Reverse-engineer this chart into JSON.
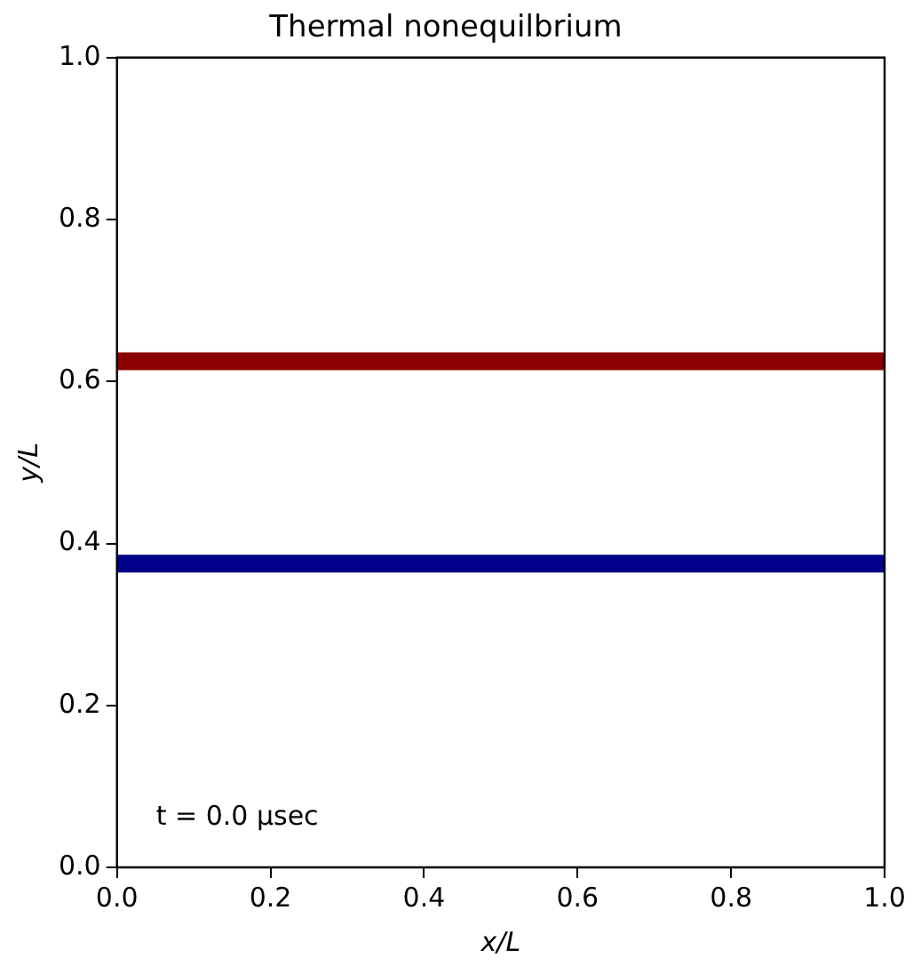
{
  "chart_data": {
    "type": "line",
    "title": "Thermal nonequilbrium",
    "xlabel": "x/L",
    "ylabel": "y/L",
    "annotations": [
      "t = 0.0 μsec"
    ],
    "ref_lines": [
      {
        "axis": "y",
        "value": 0.625,
        "color": "#8b0000",
        "line_style": "solid"
      },
      {
        "axis": "y",
        "value": 0.375,
        "color": "#00008b",
        "line_style": "solid"
      }
    ],
    "xlim": [
      0,
      1
    ],
    "ylim": [
      0,
      1
    ],
    "xticks": [
      {
        "value": 0,
        "label": "0.0"
      },
      {
        "value": 0.2,
        "label": "0.2"
      },
      {
        "value": 0.4,
        "label": "0.4"
      },
      {
        "value": 0.6,
        "label": "0.6"
      },
      {
        "value": 0.8,
        "label": "0.8"
      },
      {
        "value": 1,
        "label": "1.0"
      }
    ],
    "yticks": [
      {
        "value": 0,
        "label": "0.0"
      },
      {
        "value": 0.2,
        "label": "0.2"
      },
      {
        "value": 0.4,
        "label": "0.4"
      },
      {
        "value": 0.6,
        "label": "0.6"
      },
      {
        "value": 0.8,
        "label": "0.8"
      },
      {
        "value": 1,
        "label": "1.0"
      }
    ],
    "grid": false,
    "legend": false
  }
}
